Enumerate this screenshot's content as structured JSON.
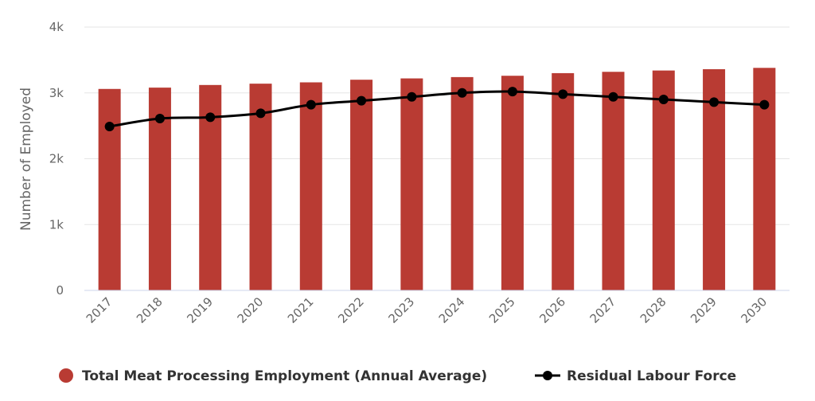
{
  "chart_data": {
    "type": "bar",
    "title": "",
    "xlabel": "",
    "ylabel": "Number of Employed",
    "categories": [
      "2017",
      "2018",
      "2019",
      "2020",
      "2021",
      "2022",
      "2023",
      "2024",
      "2025",
      "2026",
      "2027",
      "2028",
      "2029",
      "2030"
    ],
    "ylim": [
      0,
      4000
    ],
    "yticks": [
      0,
      1000,
      2000,
      3000,
      4000
    ],
    "ytick_labels": [
      "0",
      "1k",
      "2k",
      "3k",
      "4k"
    ],
    "grid": true,
    "legend_position": "bottom",
    "series": [
      {
        "name": "Total Meat Processing Employment (Annual Average)",
        "type": "bar",
        "color": "#b93b33",
        "values": [
          3060,
          3080,
          3120,
          3140,
          3160,
          3200,
          3220,
          3240,
          3260,
          3300,
          3320,
          3340,
          3360,
          3380
        ]
      },
      {
        "name": "Residual Labour Force",
        "type": "line",
        "color": "#000000",
        "values": [
          2490,
          2610,
          2630,
          2690,
          2820,
          2880,
          2940,
          3000,
          3020,
          2980,
          2940,
          2900,
          2860,
          2820
        ]
      }
    ]
  }
}
